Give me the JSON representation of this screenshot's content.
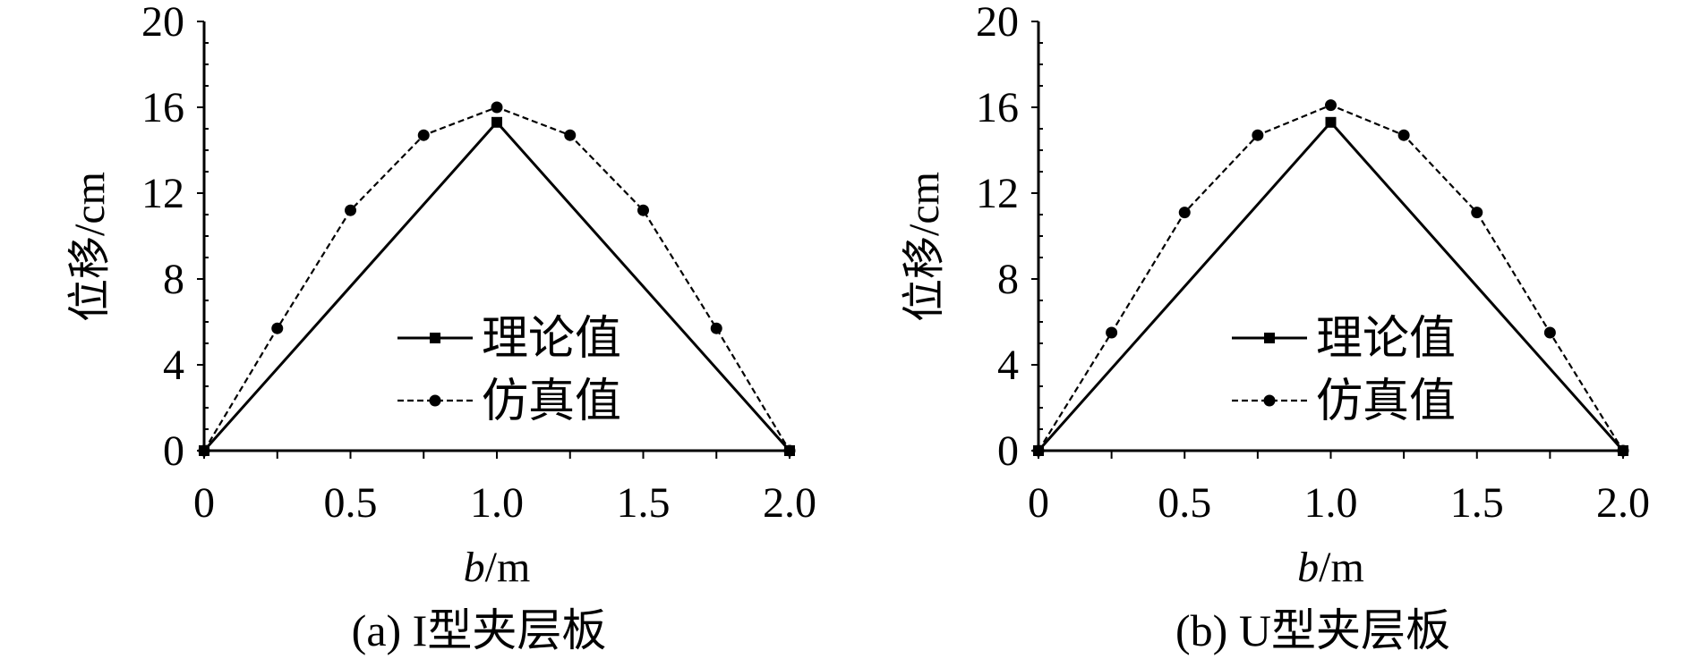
{
  "colors": {
    "line": "#000000",
    "background": "#ffffff"
  },
  "chart_data": [
    {
      "type": "line",
      "caption": "(a) I型夹层板",
      "xlabel_italic": "b",
      "xlabel_unit": "/m",
      "ylabel": "位移/cm",
      "xlim": [
        0,
        2.0
      ],
      "ylim": [
        0,
        20
      ],
      "xticks": [
        "0",
        "0.5",
        "1.0",
        "1.5",
        "2.0"
      ],
      "xtick_values": [
        0,
        0.5,
        1.0,
        1.5,
        2.0
      ],
      "yticks": [
        "0",
        "4",
        "8",
        "12",
        "16",
        "20"
      ],
      "ytick_values": [
        0,
        4,
        8,
        12,
        16,
        20
      ],
      "legend_position": "lower-center",
      "series": [
        {
          "name": "理论值",
          "marker": "square",
          "dash": "solid",
          "x": [
            0,
            1.0,
            2.0
          ],
          "y": [
            0,
            15.3,
            0
          ]
        },
        {
          "name": "仿真值",
          "marker": "circle",
          "dash": "dashed",
          "x": [
            0,
            0.25,
            0.5,
            0.75,
            1.0,
            1.25,
            1.5,
            1.75,
            2.0
          ],
          "y": [
            0,
            5.7,
            11.2,
            14.7,
            16.0,
            14.7,
            11.2,
            5.7,
            0
          ]
        }
      ]
    },
    {
      "type": "line",
      "caption": "(b) U型夹层板",
      "xlabel_italic": "b",
      "xlabel_unit": "/m",
      "ylabel": "位移/cm",
      "xlim": [
        0,
        2.0
      ],
      "ylim": [
        0,
        20
      ],
      "xticks": [
        "0",
        "0.5",
        "1.0",
        "1.5",
        "2.0"
      ],
      "xtick_values": [
        0,
        0.5,
        1.0,
        1.5,
        2.0
      ],
      "yticks": [
        "0",
        "4",
        "8",
        "12",
        "16",
        "20"
      ],
      "ytick_values": [
        0,
        4,
        8,
        12,
        16,
        20
      ],
      "legend_position": "lower-center",
      "series": [
        {
          "name": "理论值",
          "marker": "square",
          "dash": "solid",
          "x": [
            0,
            1.0,
            2.0
          ],
          "y": [
            0,
            15.3,
            0
          ]
        },
        {
          "name": "仿真值",
          "marker": "circle",
          "dash": "dashed",
          "x": [
            0,
            0.25,
            0.5,
            0.75,
            1.0,
            1.25,
            1.5,
            1.75,
            2.0
          ],
          "y": [
            0,
            5.5,
            11.1,
            14.7,
            16.1,
            14.7,
            11.1,
            5.5,
            0
          ]
        }
      ]
    }
  ]
}
